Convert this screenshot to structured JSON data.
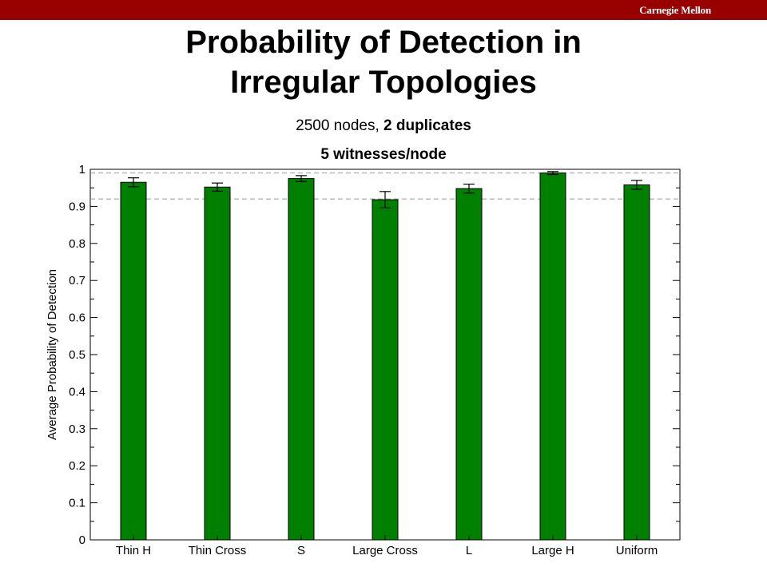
{
  "header": {
    "brand": "Carnegie Mellon",
    "bar_color": "#990000"
  },
  "slide": {
    "title_line1": "Probability of Detection in",
    "title_line2": "Irregular Topologies",
    "subtitle_nodes": "2500 nodes,",
    "subtitle_duplicates": "2 duplicates",
    "subtitle_witnesses": "5 witnesses/node"
  },
  "chart_data": {
    "type": "bar",
    "title": "",
    "xlabel": "",
    "ylabel": "Average Probability of Detection",
    "categories": [
      "Thin H",
      "Thin Cross",
      "S",
      "Large Cross",
      "L",
      "Large H",
      "Uniform"
    ],
    "values": [
      0.965,
      0.952,
      0.975,
      0.918,
      0.948,
      0.99,
      0.958
    ],
    "error": [
      0.012,
      0.011,
      0.008,
      0.022,
      0.012,
      0.004,
      0.012
    ],
    "ylim": [
      0,
      1
    ],
    "yticks": [
      "0",
      "0.1",
      "0.2",
      "0.3",
      "0.4",
      "0.5",
      "0.6",
      "0.7",
      "0.8",
      "0.9",
      "1"
    ],
    "reference_lines": [
      0.99,
      0.92
    ],
    "bar_color": "#008000",
    "grid": false,
    "legend": "none"
  }
}
